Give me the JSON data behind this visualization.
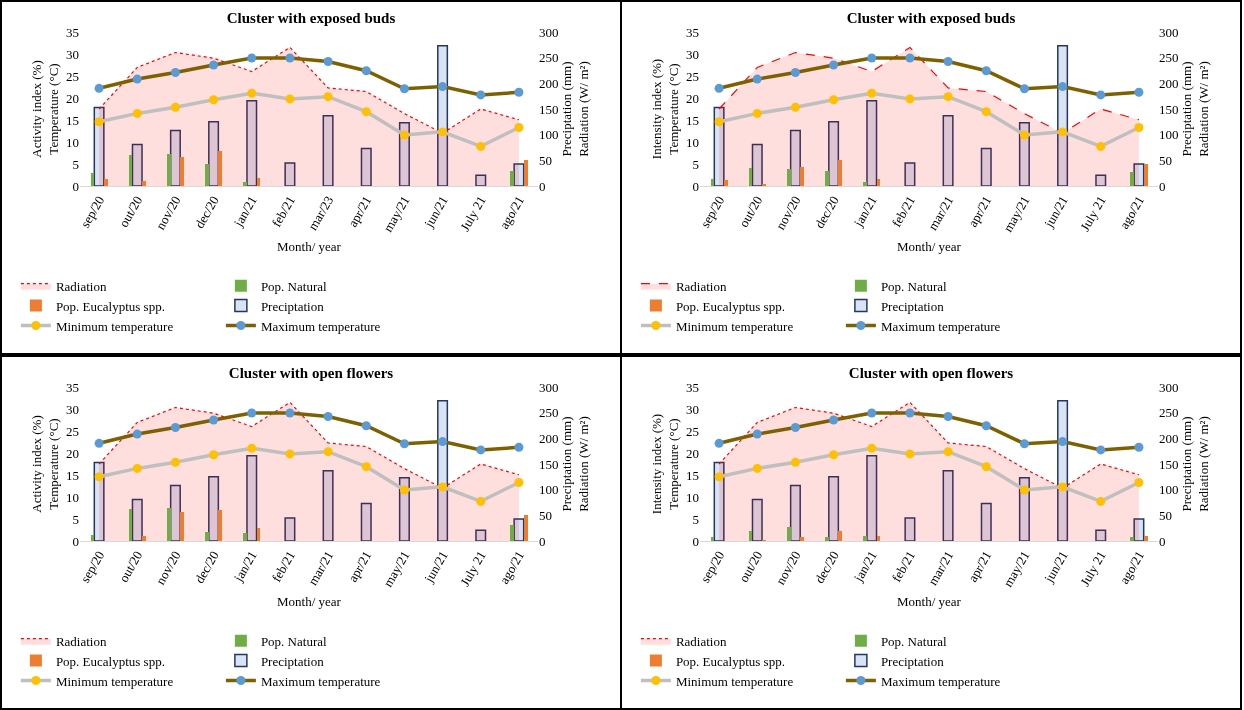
{
  "chart_data": [
    {
      "type": "bar",
      "title": "Cluster with exposed buds",
      "xlabel": "Month/ year",
      "ylabel": "Activity index (%)\nTemperature (°C)",
      "y2label": "Preciptation (mm)\nRadiation (W/ m²)",
      "categories": [
        "sep/20",
        "out/20",
        "nov/20",
        "dec/20",
        "jan/21",
        "feb/21",
        "mar/23",
        "apr/21",
        "may/21",
        "jun/21",
        "July 21",
        "ago/21"
      ],
      "ylim": [
        0,
        35
      ],
      "yticks": [
        0,
        5,
        10,
        15,
        20,
        25,
        30,
        35
      ],
      "y2lim": [
        0,
        300
      ],
      "y2ticks": [
        0,
        50,
        100,
        150,
        200,
        250,
        300
      ],
      "legend": "bottom",
      "grid": false,
      "series": [
        {
          "name": "Radiation",
          "type": "area",
          "axis": "y2",
          "color": "#ff0000",
          "line_style": "dotted",
          "values": [
            150,
            231,
            260,
            249,
            223,
            270,
            191,
            184,
            141,
            103,
            150,
            129
          ]
        },
        {
          "name": "Pop. Natural",
          "type": "bar",
          "color": "#70ad47",
          "values": [
            2.9,
            7.1,
            7.3,
            4.9,
            0.9,
            0,
            0,
            0,
            0,
            0,
            0,
            3.5
          ]
        },
        {
          "name": "Pop. Eucalyptus spp.",
          "type": "bar",
          "color": "#ed7d31",
          "values": [
            1.5,
            1.2,
            6.5,
            8.0,
            1.9,
            0,
            0,
            0,
            0,
            0,
            0,
            5.8
          ]
        },
        {
          "name": "Preciptation",
          "type": "bar",
          "axis": "y2",
          "color": "#dae3f3",
          "values": [
            153,
            81,
            108,
            125,
            166,
            45,
            137,
            73,
            123,
            273,
            21,
            43
          ]
        },
        {
          "name": "Minimum temperature",
          "type": "line",
          "color": "#bfbfbf",
          "marker": "circle",
          "colors": [
            "#ffc000",
            "#ffc000",
            "#ffc000",
            "#ffc000",
            "#ffc000",
            "#ffc000",
            "#ffc000",
            "#ffc000",
            "#ffc000",
            "#ffc000",
            "#ffc000",
            "#ffc000"
          ],
          "values": [
            14.6,
            16.5,
            17.9,
            19.6,
            21.1,
            19.8,
            20.3,
            16.9,
            11.6,
            12.3,
            9.0,
            13.3
          ]
        },
        {
          "name": "Maximum temperature",
          "type": "line",
          "color": "#7f6000",
          "marker": "circle",
          "colors": [
            "#5b9bd5",
            "#5b9bd5",
            "#5b9bd5",
            "#5b9bd5",
            "#5b9bd5",
            "#5b9bd5",
            "#5b9bd5",
            "#5b9bd5",
            "#5b9bd5",
            "#5b9bd5",
            "#5b9bd5",
            "#5b9bd5"
          ],
          "values": [
            22.2,
            24.3,
            25.8,
            27.5,
            29.1,
            29.1,
            28.3,
            26.2,
            22.1,
            22.6,
            20.7,
            21.3
          ]
        }
      ]
    },
    {
      "type": "bar",
      "title": "Cluster with exposed buds",
      "xlabel": "Month/ year",
      "ylabel": "Intensity index (%)\nTemperature (°C)",
      "y2label": "Preciptation (mm)\nRadiation (W/ m²)",
      "categories": [
        "sep/20",
        "out/20",
        "nov/20",
        "dec/20",
        "jan/21",
        "feb/21",
        "mar/21",
        "apr/21",
        "may/21",
        "jun/21",
        "July 21",
        "ago/21"
      ],
      "ylim": [
        0,
        35
      ],
      "yticks": [
        0,
        5,
        10,
        15,
        20,
        25,
        30,
        35
      ],
      "y2lim": [
        0,
        300
      ],
      "y2ticks": [
        0,
        50,
        100,
        150,
        200,
        250,
        300
      ],
      "legend": "bottom",
      "grid": false,
      "series": [
        {
          "name": "Radiation",
          "type": "area",
          "axis": "y2",
          "color": "#ff0000",
          "line_style": "dashed",
          "values": [
            150,
            231,
            260,
            249,
            223,
            270,
            191,
            184,
            141,
            103,
            150,
            129
          ]
        },
        {
          "name": "Pop. Natural",
          "type": "bar",
          "color": "#70ad47",
          "values": [
            1.7,
            4.2,
            3.9,
            3.4,
            0.9,
            0,
            0,
            0,
            0,
            0,
            0,
            3.1
          ]
        },
        {
          "name": "Pop. Eucalyptus spp.",
          "type": "bar",
          "color": "#ed7d31",
          "values": [
            1.3,
            0.5,
            4.3,
            6.0,
            1.6,
            0,
            0,
            0,
            0,
            0,
            0,
            4.9
          ]
        },
        {
          "name": "Preciptation",
          "type": "bar",
          "axis": "y2",
          "color": "#dae3f3",
          "values": [
            153,
            81,
            108,
            125,
            166,
            45,
            137,
            73,
            123,
            273,
            21,
            43
          ]
        },
        {
          "name": "Minimum temperature",
          "type": "line",
          "color": "#bfbfbf",
          "marker": "circle",
          "colors": [
            "#ffc000",
            "#ffc000",
            "#ffc000",
            "#ffc000",
            "#ffc000",
            "#ffc000",
            "#ffc000",
            "#ffc000",
            "#ffc000",
            "#ffc000",
            "#ffc000",
            "#ffc000"
          ],
          "values": [
            14.6,
            16.5,
            17.9,
            19.6,
            21.1,
            19.8,
            20.3,
            16.9,
            11.6,
            12.3,
            9.0,
            13.3
          ]
        },
        {
          "name": "Maximum temperature",
          "type": "line",
          "color": "#7f6000",
          "marker": "circle",
          "colors": [
            "#5b9bd5",
            "#5b9bd5",
            "#5b9bd5",
            "#5b9bd5",
            "#5b9bd5",
            "#5b9bd5",
            "#5b9bd5",
            "#5b9bd5",
            "#5b9bd5",
            "#5b9bd5",
            "#5b9bd5",
            "#5b9bd5"
          ],
          "values": [
            22.2,
            24.3,
            25.8,
            27.5,
            29.1,
            29.1,
            28.3,
            26.2,
            22.1,
            22.6,
            20.7,
            21.3
          ]
        }
      ]
    },
    {
      "type": "bar",
      "title": "Cluster with open flowers",
      "xlabel": "Month/ year",
      "ylabel": "Activity index (%)\nTemperature (°C)",
      "y2label": "Preciptation (mm)\nRadiation (W/ m²)",
      "categories": [
        "sep/20",
        "out/20",
        "nov/20",
        "dec/20",
        "jan/21",
        "feb/21",
        "mar/21",
        "apr/21",
        "may/21",
        "jun/21",
        "July 21",
        "ago/21"
      ],
      "ylim": [
        0,
        35
      ],
      "yticks": [
        0,
        5,
        10,
        15,
        20,
        25,
        30,
        35
      ],
      "y2lim": [
        0,
        300
      ],
      "y2ticks": [
        0,
        50,
        100,
        150,
        200,
        250,
        300
      ],
      "legend": "bottom",
      "grid": false,
      "series": [
        {
          "name": "Radiation",
          "type": "area",
          "axis": "y2",
          "color": "#ff0000",
          "line_style": "dotted",
          "values": [
            150,
            231,
            260,
            249,
            223,
            270,
            191,
            184,
            141,
            103,
            150,
            129
          ]
        },
        {
          "name": "Pop. Natural",
          "type": "bar",
          "color": "#70ad47",
          "values": [
            1.4,
            7.3,
            7.4,
            2.0,
            1.8,
            0,
            0,
            0,
            0,
            0,
            0,
            3.7
          ]
        },
        {
          "name": "Pop. Eucalyptus spp.",
          "type": "bar",
          "color": "#ed7d31",
          "values": [
            0,
            1.2,
            6.5,
            7.1,
            2.9,
            0,
            0,
            0,
            0,
            0,
            0,
            5.8
          ]
        },
        {
          "name": "Preciptation",
          "type": "bar",
          "axis": "y2",
          "color": "#dae3f3",
          "values": [
            153,
            81,
            108,
            125,
            166,
            45,
            137,
            73,
            123,
            273,
            21,
            43
          ]
        },
        {
          "name": "Minimum temperature",
          "type": "line",
          "color": "#bfbfbf",
          "marker": "circle",
          "colors": [
            "#ffc000",
            "#ffc000",
            "#ffc000",
            "#ffc000",
            "#ffc000",
            "#ffc000",
            "#ffc000",
            "#ffc000",
            "#ffc000",
            "#ffc000",
            "#ffc000",
            "#ffc000"
          ],
          "values": [
            14.6,
            16.5,
            17.9,
            19.6,
            21.1,
            19.8,
            20.3,
            16.9,
            11.6,
            12.3,
            9.0,
            13.3
          ]
        },
        {
          "name": "Maximum temperature",
          "type": "line",
          "color": "#7f6000",
          "marker": "circle",
          "colors": [
            "#5b9bd5",
            "#5b9bd5",
            "#5b9bd5",
            "#5b9bd5",
            "#5b9bd5",
            "#5b9bd5",
            "#5b9bd5",
            "#5b9bd5",
            "#5b9bd5",
            "#5b9bd5",
            "#5b9bd5",
            "#5b9bd5"
          ],
          "values": [
            22.2,
            24.3,
            25.8,
            27.5,
            29.1,
            29.1,
            28.3,
            26.2,
            22.1,
            22.6,
            20.7,
            21.3
          ]
        }
      ]
    },
    {
      "type": "bar",
      "title": "Cluster with open flowers",
      "xlabel": "Month/ year",
      "ylabel": "Intensity index (%)\nTemperature (°C)",
      "y2label": "Preciptation (mm)\nRadiation (W/ m²)",
      "categories": [
        "sep/20",
        "out/20",
        "nov/20",
        "dec/20",
        "jan/21",
        "feb/21",
        "mar/21",
        "apr/21",
        "may/21",
        "jun/21",
        "July 21",
        "ago/21"
      ],
      "ylim": [
        0,
        35
      ],
      "yticks": [
        0,
        5,
        10,
        15,
        20,
        25,
        30,
        35
      ],
      "y2lim": [
        0,
        300
      ],
      "y2ticks": [
        0,
        50,
        100,
        150,
        200,
        250,
        300
      ],
      "legend": "bottom",
      "grid": false,
      "series": [
        {
          "name": "Radiation",
          "type": "area",
          "axis": "y2",
          "color": "#ff0000",
          "line_style": "dotted",
          "values": [
            150,
            231,
            260,
            249,
            223,
            270,
            191,
            184,
            141,
            103,
            150,
            129
          ]
        },
        {
          "name": "Pop. Natural",
          "type": "bar",
          "color": "#70ad47",
          "values": [
            1.0,
            2.3,
            3.1,
            1.0,
            1.1,
            0,
            0,
            0,
            0,
            0,
            0,
            0.8
          ]
        },
        {
          "name": "Pop. Eucalyptus spp.",
          "type": "bar",
          "color": "#ed7d31",
          "values": [
            0,
            0.2,
            1.0,
            2.3,
            1.1,
            0,
            0,
            0,
            0,
            0,
            0,
            1.1
          ]
        },
        {
          "name": "Preciptation",
          "type": "bar",
          "axis": "y2",
          "color": "#dae3f3",
          "values": [
            153,
            81,
            108,
            125,
            166,
            45,
            137,
            73,
            123,
            273,
            21,
            43
          ]
        },
        {
          "name": "Minimum temperature",
          "type": "line",
          "color": "#bfbfbf",
          "marker": "circle",
          "colors": [
            "#ffc000",
            "#ffc000",
            "#ffc000",
            "#ffc000",
            "#ffc000",
            "#ffc000",
            "#ffc000",
            "#ffc000",
            "#ffc000",
            "#ffc000",
            "#ffc000",
            "#ffc000"
          ],
          "values": [
            14.6,
            16.5,
            17.9,
            19.6,
            21.1,
            19.8,
            20.3,
            16.9,
            11.6,
            12.3,
            9.0,
            13.3
          ]
        },
        {
          "name": "Maximum temperature",
          "type": "line",
          "color": "#7f6000",
          "marker": "circle",
          "colors": [
            "#5b9bd5",
            "#5b9bd5",
            "#5b9bd5",
            "#5b9bd5",
            "#5b9bd5",
            "#5b9bd5",
            "#5b9bd5",
            "#5b9bd5",
            "#5b9bd5",
            "#5b9bd5",
            "#5b9bd5",
            "#5b9bd5"
          ],
          "values": [
            22.2,
            24.3,
            25.8,
            27.5,
            29.1,
            29.1,
            28.3,
            26.2,
            22.1,
            22.6,
            20.7,
            21.3
          ]
        }
      ]
    }
  ]
}
